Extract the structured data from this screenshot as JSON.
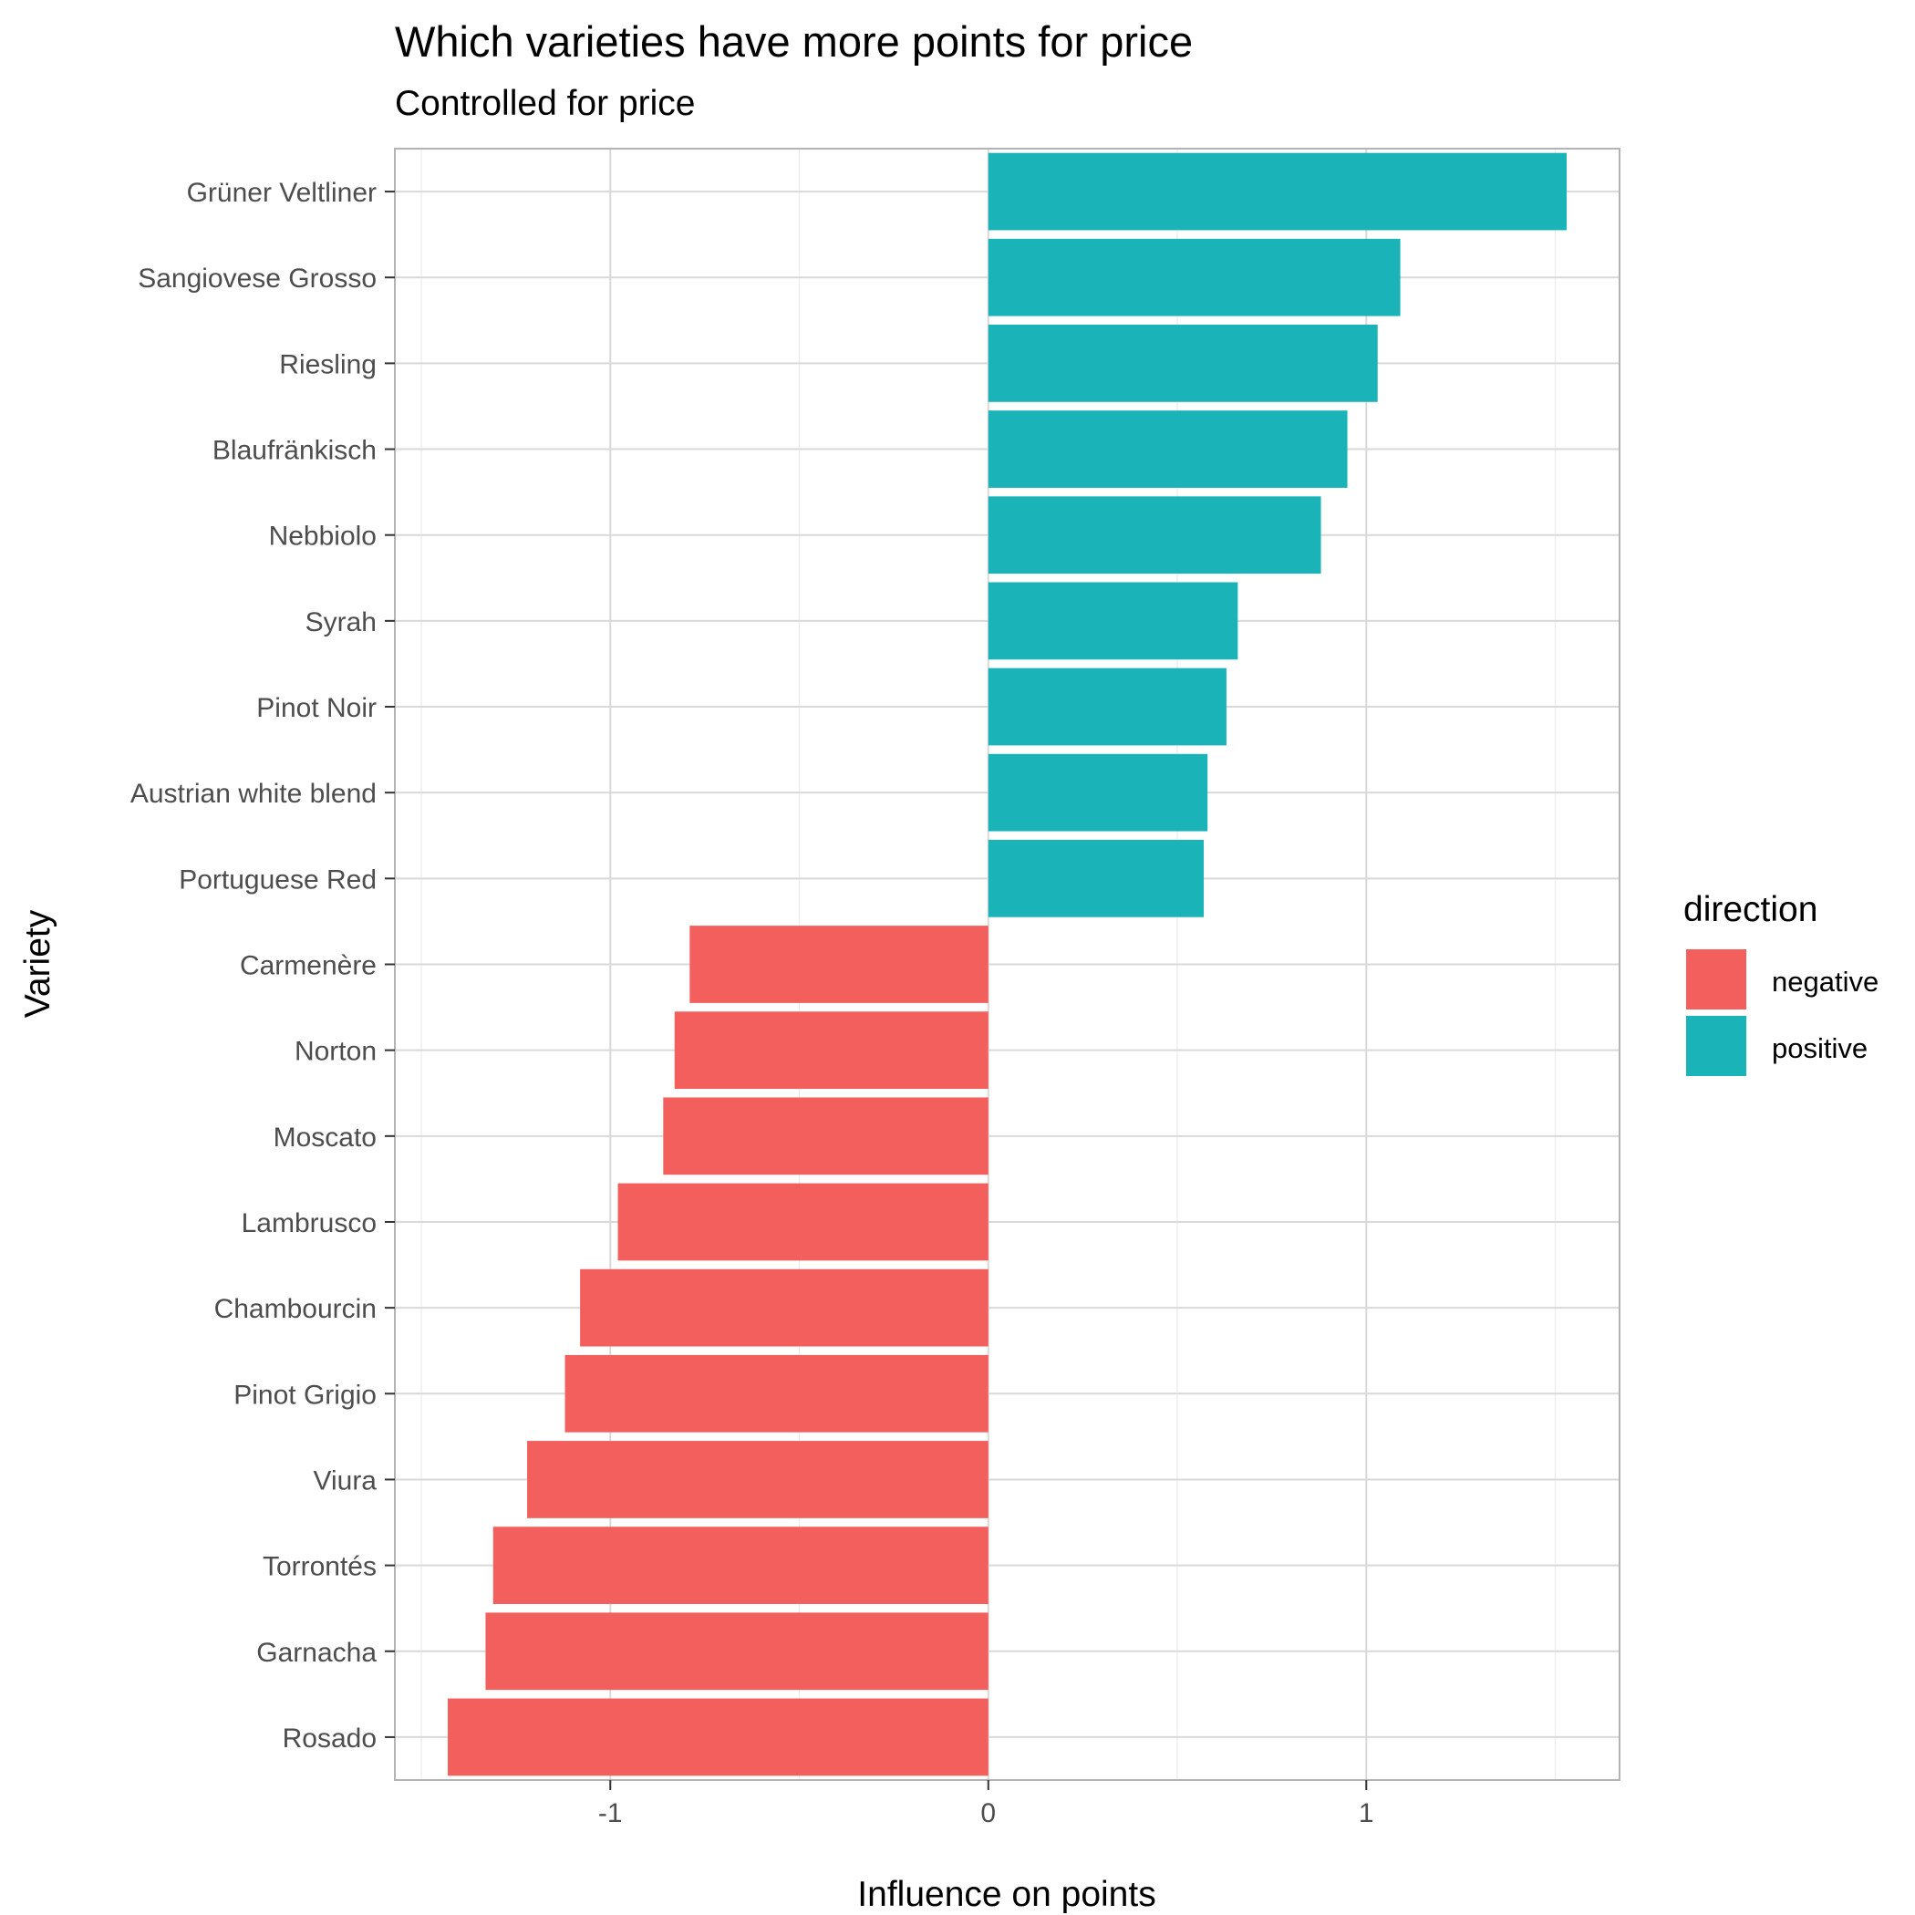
{
  "chart_data": {
    "type": "bar",
    "orientation": "horizontal",
    "title": "Which varieties have more points for price",
    "subtitle": "Controlled for price",
    "xlabel": "Influence on points",
    "ylabel": "Variety",
    "xlim": [
      -1.57,
      1.67
    ],
    "xticks": [
      -1,
      0,
      1
    ],
    "xtick_labels": [
      "-1",
      "0",
      "1"
    ],
    "grid": true,
    "legend": {
      "title": "direction",
      "position": "right",
      "entries": [
        {
          "label": "negative",
          "color": "#F25F5C"
        },
        {
          "label": "positive",
          "color": "#1AB3B8"
        }
      ]
    },
    "categories": [
      "Grüner Veltliner",
      "Sangiovese Grosso",
      "Riesling",
      "Blaufränkisch",
      "Nebbiolo",
      "Syrah",
      "Pinot Noir",
      "Austrian white blend",
      "Portuguese Red",
      "Carmenère",
      "Norton",
      "Moscato",
      "Lambrusco",
      "Chambourcin",
      "Pinot Grigio",
      "Viura",
      "Torrontés",
      "Garnacha",
      "Rosado"
    ],
    "values": [
      1.53,
      1.09,
      1.03,
      0.95,
      0.88,
      0.66,
      0.63,
      0.58,
      0.57,
      -0.79,
      -0.83,
      -0.86,
      -0.98,
      -1.08,
      -1.12,
      -1.22,
      -1.31,
      -1.33,
      -1.43
    ],
    "direction": [
      "positive",
      "positive",
      "positive",
      "positive",
      "positive",
      "positive",
      "positive",
      "positive",
      "positive",
      "negative",
      "negative",
      "negative",
      "negative",
      "negative",
      "negative",
      "negative",
      "negative",
      "negative",
      "negative"
    ]
  }
}
